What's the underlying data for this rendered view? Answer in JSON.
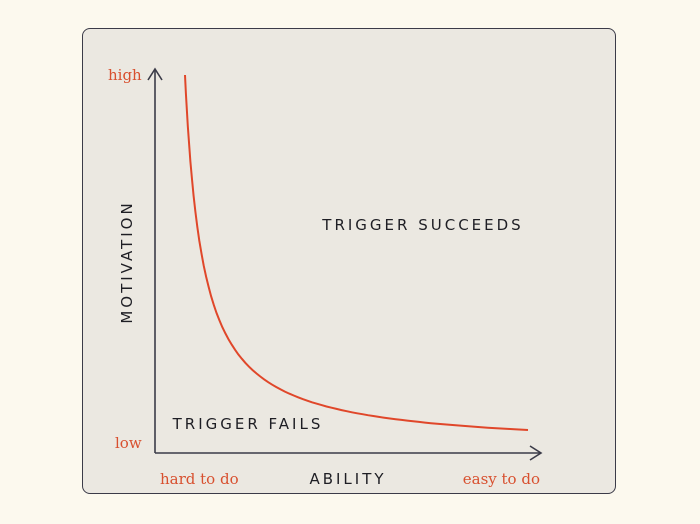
{
  "colors": {
    "background": "#fcf9ee",
    "panel": "#ebe8e1",
    "axis": "#3b3b48",
    "curve": "#e0472a",
    "label_accent": "#d8502f",
    "text": "#1e1e24"
  },
  "y_axis": {
    "title": "MOTIVATION",
    "high_label": "high",
    "low_label": "low"
  },
  "x_axis": {
    "title": "ABILITY",
    "low_label": "hard to do",
    "high_label": "easy to do"
  },
  "regions": {
    "above_curve": "TRIGGER SUCCEEDS",
    "below_curve": "TRIGGER FAILS"
  }
}
